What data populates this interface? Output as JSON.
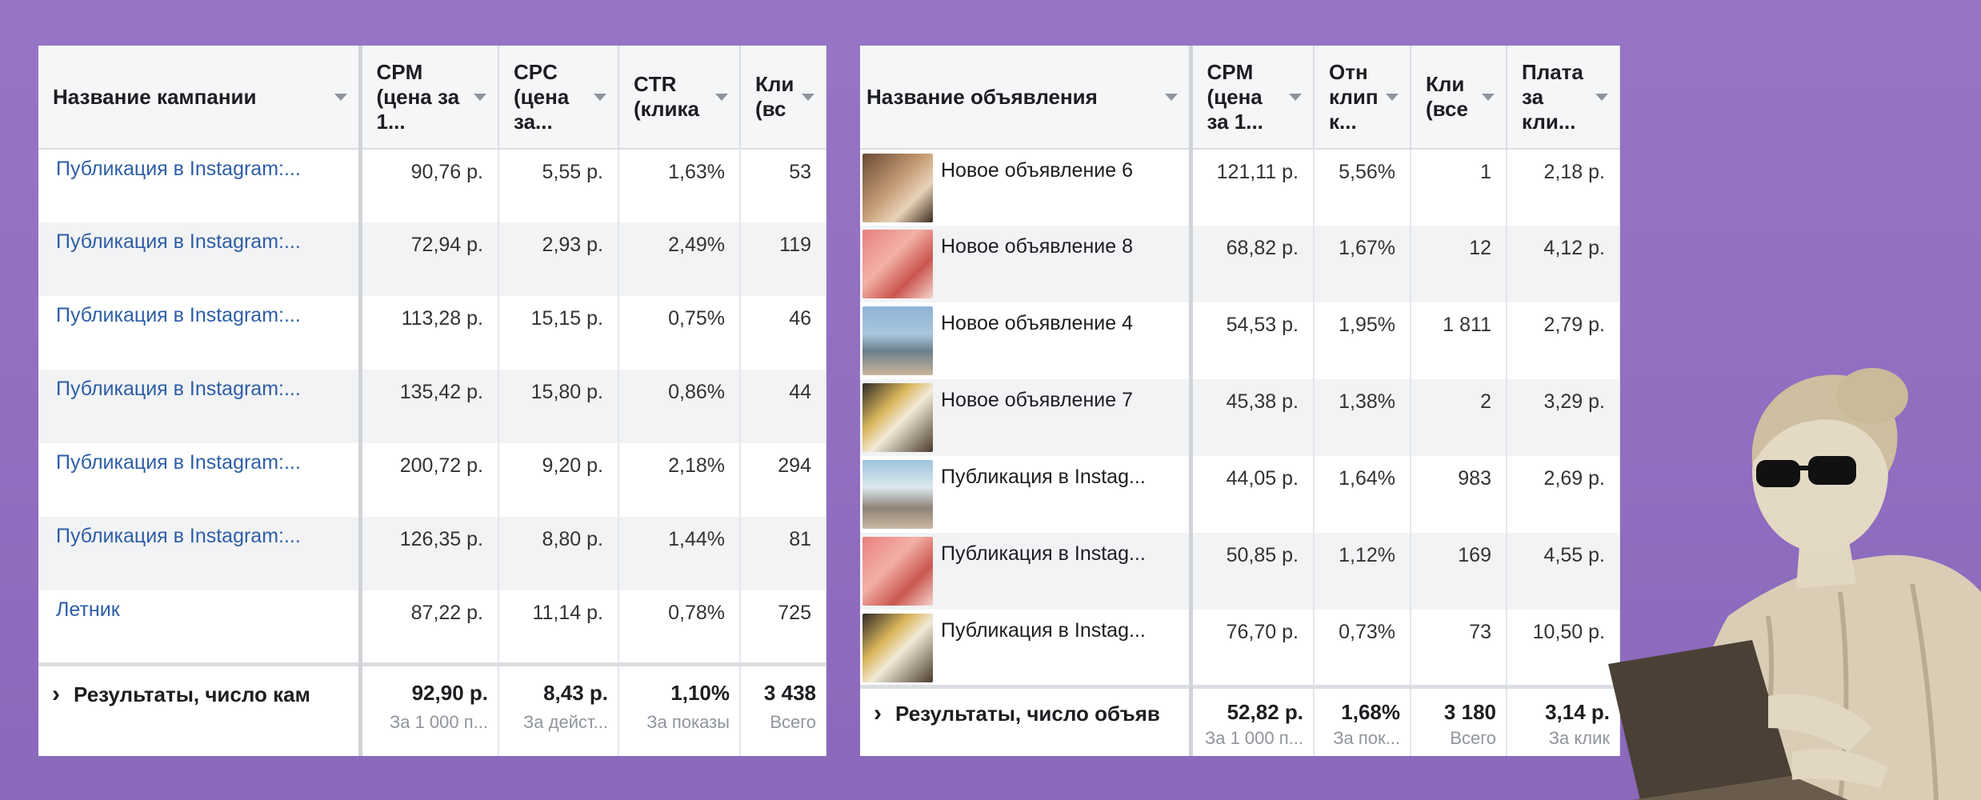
{
  "left_table": {
    "columns": [
      {
        "label": "Название кампании"
      },
      {
        "label": "CPM (цена за 1..."
      },
      {
        "label": "CPC (цена за..."
      },
      {
        "label": "CTR (клика"
      },
      {
        "label": "Кли (вс"
      }
    ],
    "rows": [
      {
        "name": "Публикация в Instagram:...",
        "cpm": "90,76 р.",
        "cpc": "5,55 р.",
        "ctr": "1,63%",
        "clicks": "53"
      },
      {
        "name": "Публикация в Instagram:...",
        "cpm": "72,94 р.",
        "cpc": "2,93 р.",
        "ctr": "2,49%",
        "clicks": "119"
      },
      {
        "name": "Публикация в Instagram:...",
        "cpm": "113,28 р.",
        "cpc": "15,15 р.",
        "ctr": "0,75%",
        "clicks": "46"
      },
      {
        "name": "Публикация в Instagram:...",
        "cpm": "135,42 р.",
        "cpc": "15,80 р.",
        "ctr": "0,86%",
        "clicks": "44"
      },
      {
        "name": "Публикация в Instagram:...",
        "cpm": "200,72 р.",
        "cpc": "9,20 р.",
        "ctr": "2,18%",
        "clicks": "294"
      },
      {
        "name": "Публикация в Instagram:...",
        "cpm": "126,35 р.",
        "cpc": "8,80 р.",
        "ctr": "1,44%",
        "clicks": "81"
      },
      {
        "name": "Летник",
        "cpm": "87,22 р.",
        "cpc": "11,14 р.",
        "ctr": "0,78%",
        "clicks": "725"
      }
    ],
    "totals": {
      "label": "Результаты, число кам",
      "cpm": "92,90 р.",
      "cpm_sub": "За 1 000 п...",
      "cpc": "8,43 р.",
      "cpc_sub": "За дейст...",
      "ctr": "1,10%",
      "ctr_sub": "За показы",
      "clicks": "3 438",
      "clicks_sub": "Всего"
    }
  },
  "right_table": {
    "columns": [
      {
        "label": "Название объявления"
      },
      {
        "label": "CPM (цена за 1..."
      },
      {
        "label": "Отн клип к..."
      },
      {
        "label": "Кли (все"
      },
      {
        "label": "Плата за кли..."
      }
    ],
    "rows": [
      {
        "name": "Новое объявление 6",
        "cpm": "121,11 р.",
        "rel": "5,56%",
        "clicks": "1",
        "cost": "2,18 р.",
        "thumb": "woman-eating"
      },
      {
        "name": "Новое объявление 8",
        "cpm": "68,82 р.",
        "rel": "1,67%",
        "clicks": "12",
        "cost": "4,12 р.",
        "thumb": "pink-food"
      },
      {
        "name": "Новое объявление 4",
        "cpm": "54,53 р.",
        "rel": "1,95%",
        "clicks": "1 811",
        "cost": "2,79 р.",
        "thumb": "terrace-sea"
      },
      {
        "name": "Новое объявление 7",
        "cpm": "45,38 р.",
        "rel": "1,38%",
        "clicks": "2",
        "cost": "3,29 р.",
        "thumb": "breakfast"
      },
      {
        "name": "Публикация в Instag...",
        "cpm": "44,05 р.",
        "rel": "1,64%",
        "clicks": "983",
        "cost": "2,69 р.",
        "thumb": "cafe-terrace"
      },
      {
        "name": "Публикация в Instag...",
        "cpm": "50,85 р.",
        "rel": "1,12%",
        "clicks": "169",
        "cost": "4,55 р.",
        "thumb": "pink-food"
      },
      {
        "name": "Публикация в Instag...",
        "cpm": "76,70 р.",
        "rel": "0,73%",
        "clicks": "73",
        "cost": "10,50 р.",
        "thumb": "breakfast"
      }
    ],
    "totals": {
      "label": "Результаты, число объяв",
      "cpm": "52,82 р.",
      "cpm_sub": "За 1 000 п...",
      "rel": "1,68%",
      "rel_sub": "За пок...",
      "clicks": "3 180",
      "clicks_sub": "Всего",
      "cost": "3,14 р.",
      "cost_sub": "За клик"
    }
  },
  "colors": {
    "background": "#8e6cbf",
    "link": "#2d5ea6",
    "header_bg": "#f5f6f7"
  }
}
